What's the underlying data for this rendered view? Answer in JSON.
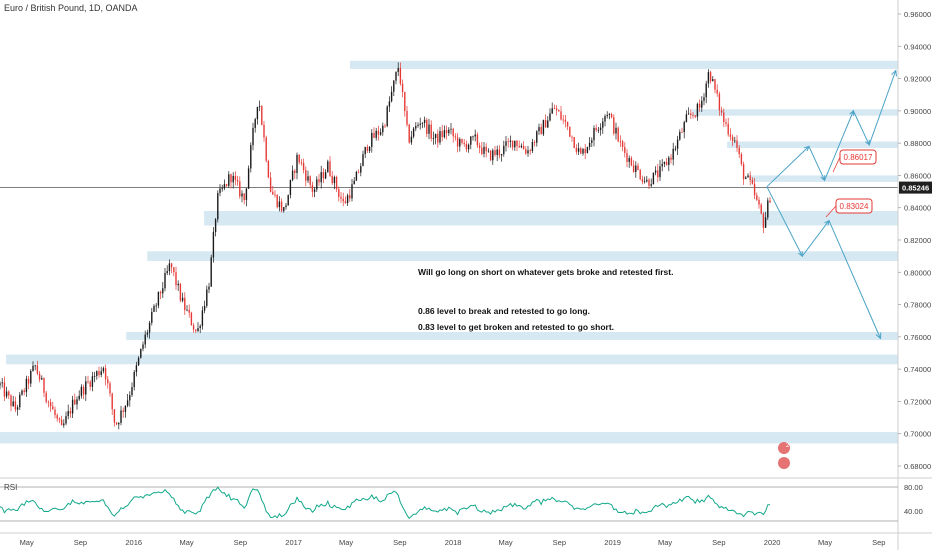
{
  "header": {
    "title": "Euro / British Pound, 1D, OANDA"
  },
  "notes": {
    "line1": "Will go long on short on whatever gets broke and retested first.",
    "line2": "0.86 level to break and retested to go long.",
    "line3": "0.83 level to get broken and retested to go short."
  },
  "rsi": {
    "label": "RSI",
    "upper": "80.00",
    "lower": "40.00"
  },
  "price_scale": [
    "0.96000",
    "0.94000",
    "0.92000",
    "0.90000",
    "0.88000",
    "0.86000",
    "0.84000",
    "0.82000",
    "0.80000",
    "0.78000",
    "0.76000",
    "0.74000",
    "0.72000",
    "0.70000",
    "0.68000"
  ],
  "time_scale": [
    "May",
    "Sep",
    "2016",
    "May",
    "Sep",
    "2017",
    "May",
    "Sep",
    "2018",
    "May",
    "Sep",
    "2019",
    "May",
    "Sep",
    "2020",
    "May",
    "Sep"
  ],
  "current_price": "0.85246",
  "badges": {
    "upper": "0.86017",
    "lower": "0.83024"
  },
  "logo": {
    "text": "2"
  },
  "colors": {
    "up": "#1a1a1a",
    "down": "#e53935",
    "zone": "#d6e8f2",
    "arrow": "#4aa3c7",
    "rsi": "#12a88a",
    "badge": "#e53935"
  },
  "chart_data": {
    "type": "candlestick",
    "symbol": "EURGBP",
    "timeframe": "1D",
    "ylim": [
      0.675,
      0.965
    ],
    "xlim": [
      "2015-03-01",
      "2020-10-15"
    ],
    "zones": [
      {
        "low": 0.926,
        "high": 0.931,
        "from": "2017-05-10"
      },
      {
        "low": 0.897,
        "high": 0.901,
        "from": "2019-07-01"
      },
      {
        "low": 0.877,
        "high": 0.881,
        "from": "2019-09-20"
      },
      {
        "low": 0.856,
        "high": 0.86,
        "from": "2019-11-10"
      },
      {
        "low": 0.829,
        "high": 0.838,
        "from": "2016-06-10"
      },
      {
        "low": 0.807,
        "high": 0.813,
        "from": "2016-02-01"
      },
      {
        "low": 0.758,
        "high": 0.763,
        "from": "2015-12-15"
      },
      {
        "low": 0.743,
        "high": 0.749,
        "from": "2015-03-15"
      },
      {
        "low": 0.694,
        "high": 0.701,
        "from": "2015-03-01"
      }
    ],
    "horizontal_line": 0.85246,
    "projection_long": [
      {
        "t": "2019-12-20",
        "p": 0.853
      },
      {
        "t": "2020-03-25",
        "p": 0.878
      },
      {
        "t": "2020-04-30",
        "p": 0.857
      },
      {
        "t": "2020-07-05",
        "p": 0.9
      },
      {
        "t": "2020-08-10",
        "p": 0.879
      },
      {
        "t": "2020-10-10",
        "p": 0.925
      }
    ],
    "projection_short": [
      {
        "t": "2019-12-20",
        "p": 0.853
      },
      {
        "t": "2020-03-10",
        "p": 0.81
      },
      {
        "t": "2020-05-10",
        "p": 0.832
      },
      {
        "t": "2020-09-05",
        "p": 0.759
      }
    ],
    "price_path": [
      {
        "t": "2015-03-01",
        "p": 0.73
      },
      {
        "t": "2015-04-05",
        "p": 0.715
      },
      {
        "t": "2015-05-20",
        "p": 0.742
      },
      {
        "t": "2015-06-20",
        "p": 0.72
      },
      {
        "t": "2015-07-20",
        "p": 0.702
      },
      {
        "t": "2015-08-20",
        "p": 0.722
      },
      {
        "t": "2015-09-20",
        "p": 0.732
      },
      {
        "t": "2015-10-25",
        "p": 0.742
      },
      {
        "t": "2015-11-20",
        "p": 0.705
      },
      {
        "t": "2015-12-20",
        "p": 0.723
      },
      {
        "t": "2016-01-25",
        "p": 0.758
      },
      {
        "t": "2016-02-25",
        "p": 0.783
      },
      {
        "t": "2016-03-25",
        "p": 0.805
      },
      {
        "t": "2016-04-20",
        "p": 0.782
      },
      {
        "t": "2016-05-25",
        "p": 0.762
      },
      {
        "t": "2016-06-22",
        "p": 0.795
      },
      {
        "t": "2016-07-10",
        "p": 0.845
      },
      {
        "t": "2016-08-10",
        "p": 0.86
      },
      {
        "t": "2016-09-10",
        "p": 0.845
      },
      {
        "t": "2016-10-12",
        "p": 0.91
      },
      {
        "t": "2016-11-10",
        "p": 0.85
      },
      {
        "t": "2016-12-10",
        "p": 0.838
      },
      {
        "t": "2017-01-10",
        "p": 0.872
      },
      {
        "t": "2017-02-15",
        "p": 0.85
      },
      {
        "t": "2017-03-20",
        "p": 0.866
      },
      {
        "t": "2017-04-25",
        "p": 0.842
      },
      {
        "t": "2017-05-20",
        "p": 0.855
      },
      {
        "t": "2017-06-20",
        "p": 0.88
      },
      {
        "t": "2017-07-25",
        "p": 0.89
      },
      {
        "t": "2017-08-29",
        "p": 0.928
      },
      {
        "t": "2017-09-20",
        "p": 0.882
      },
      {
        "t": "2017-10-20",
        "p": 0.895
      },
      {
        "t": "2017-11-20",
        "p": 0.882
      },
      {
        "t": "2017-12-20",
        "p": 0.888
      },
      {
        "t": "2018-01-20",
        "p": 0.878
      },
      {
        "t": "2018-02-20",
        "p": 0.882
      },
      {
        "t": "2018-03-20",
        "p": 0.872
      },
      {
        "t": "2018-04-20",
        "p": 0.875
      },
      {
        "t": "2018-05-20",
        "p": 0.882
      },
      {
        "t": "2018-06-20",
        "p": 0.875
      },
      {
        "t": "2018-07-20",
        "p": 0.888
      },
      {
        "t": "2018-08-20",
        "p": 0.902
      },
      {
        "t": "2018-09-20",
        "p": 0.89
      },
      {
        "t": "2018-10-20",
        "p": 0.872
      },
      {
        "t": "2018-11-20",
        "p": 0.887
      },
      {
        "t": "2018-12-20",
        "p": 0.9
      },
      {
        "t": "2019-01-20",
        "p": 0.878
      },
      {
        "t": "2019-02-20",
        "p": 0.865
      },
      {
        "t": "2019-03-20",
        "p": 0.856
      },
      {
        "t": "2019-04-20",
        "p": 0.862
      },
      {
        "t": "2019-05-20",
        "p": 0.875
      },
      {
        "t": "2019-06-20",
        "p": 0.895
      },
      {
        "t": "2019-07-20",
        "p": 0.902
      },
      {
        "t": "2019-08-10",
        "p": 0.925
      },
      {
        "t": "2019-09-10",
        "p": 0.895
      },
      {
        "t": "2019-10-10",
        "p": 0.88
      },
      {
        "t": "2019-10-25",
        "p": 0.862
      },
      {
        "t": "2019-11-15",
        "p": 0.853
      },
      {
        "t": "2019-12-13",
        "p": 0.83
      },
      {
        "t": "2019-12-31",
        "p": 0.852
      }
    ]
  }
}
